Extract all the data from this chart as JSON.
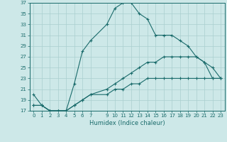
{
  "xlabel": "Humidex (Indice chaleur)",
  "bg_color": "#cde8e8",
  "line_color": "#1a6b6b",
  "grid_color": "#aacfcf",
  "line1_x": [
    0,
    1,
    2,
    3,
    4,
    5,
    6,
    7,
    9,
    10,
    11,
    12,
    13,
    14,
    15,
    16,
    17,
    18,
    19,
    20,
    21,
    22,
    23
  ],
  "line1_y": [
    20,
    18,
    17,
    17,
    17,
    22,
    28,
    30,
    33,
    36,
    37,
    37,
    35,
    34,
    31,
    31,
    31,
    30,
    29,
    27,
    26,
    23,
    23
  ],
  "line2_x": [
    0,
    1,
    2,
    3,
    4,
    5,
    6,
    7,
    9,
    10,
    11,
    12,
    13,
    14,
    15,
    16,
    17,
    18,
    19,
    20,
    21,
    22,
    23
  ],
  "line2_y": [
    18,
    18,
    17,
    17,
    17,
    18,
    19,
    20,
    21,
    22,
    23,
    24,
    25,
    26,
    26,
    27,
    27,
    27,
    27,
    27,
    26,
    25,
    23
  ],
  "line3_x": [
    0,
    1,
    2,
    3,
    4,
    5,
    6,
    7,
    9,
    10,
    11,
    12,
    13,
    14,
    15,
    16,
    17,
    18,
    19,
    20,
    21,
    22,
    23
  ],
  "line3_y": [
    18,
    18,
    17,
    17,
    17,
    18,
    19,
    20,
    20,
    21,
    21,
    22,
    22,
    23,
    23,
    23,
    23,
    23,
    23,
    23,
    23,
    23,
    23
  ],
  "xlim": [
    -0.5,
    23.5
  ],
  "ylim": [
    17,
    37
  ],
  "xticks": [
    0,
    1,
    2,
    3,
    4,
    5,
    6,
    7,
    9,
    10,
    11,
    12,
    13,
    14,
    15,
    16,
    17,
    18,
    19,
    20,
    21,
    22,
    23
  ],
  "yticks": [
    17,
    19,
    21,
    23,
    25,
    27,
    29,
    31,
    33,
    35,
    37
  ],
  "marker": "+",
  "markersize": 3,
  "linewidth": 0.8,
  "tick_fontsize": 5,
  "xlabel_fontsize": 6
}
